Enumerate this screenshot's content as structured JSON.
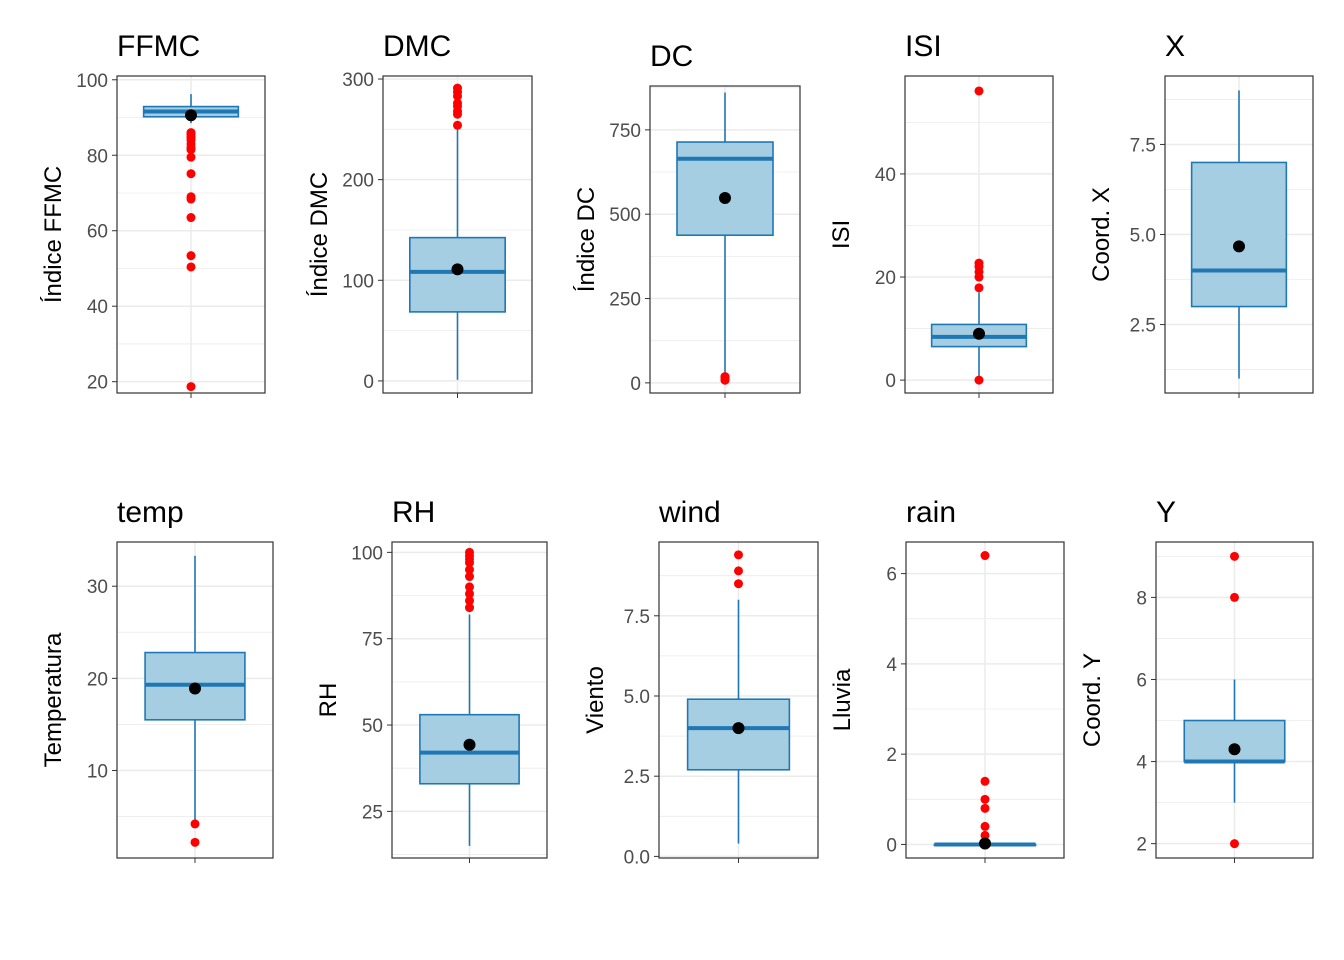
{
  "chart_data": [
    {
      "type": "boxplot",
      "title": "FFMC",
      "ylabel": "Índice FFMC",
      "ylim": [
        17,
        101
      ],
      "yticks": [
        20,
        40,
        60,
        80,
        100
      ],
      "box": {
        "q1": 90.2,
        "median": 91.6,
        "q3": 92.9,
        "whisker_low": 88.5,
        "whisker_high": 96.2,
        "mean": 90.6
      },
      "outliers": [
        18.7,
        50.4,
        53.4,
        63.5,
        68.4,
        69,
        75.1,
        79.5,
        81.5,
        82.1,
        83,
        84,
        84.6,
        85,
        85.6,
        86
      ]
    },
    {
      "type": "boxplot",
      "title": "DMC",
      "ylabel": "Índice DMC",
      "ylim": [
        -12,
        303
      ],
      "yticks": [
        0,
        100,
        200,
        300
      ],
      "box": {
        "q1": 68.6,
        "median": 108.3,
        "q3": 142.4,
        "whisker_low": 1.1,
        "whisker_high": 251,
        "mean": 110.9
      },
      "outliers": [
        254,
        265,
        268,
        273,
        276,
        283,
        287,
        291
      ]
    },
    {
      "type": "boxplot",
      "title": "DC",
      "ylabel": "Índice DC",
      "ylim": [
        -30,
        880
      ],
      "yticks": [
        0,
        250,
        500,
        750
      ],
      "box": {
        "q1": 437.7,
        "median": 664.2,
        "q3": 713.9,
        "whisker_low": 15,
        "whisker_high": 860.6,
        "mean": 547.9
      },
      "outliers": [
        7.9,
        9.3,
        15.3,
        18.7
      ]
    },
    {
      "type": "boxplot",
      "title": "ISI",
      "ylabel": "ISI",
      "ylim": [
        -2.5,
        59
      ],
      "yticks": [
        0,
        20,
        40
      ],
      "box": {
        "q1": 6.5,
        "median": 8.4,
        "q3": 10.8,
        "whisker_low": 0.4,
        "whisker_high": 17,
        "mean": 9
      },
      "outliers": [
        0,
        17.9,
        20,
        21,
        22,
        22.7,
        56.1
      ]
    },
    {
      "type": "boxplot",
      "title": "X",
      "ylabel": "Coord. X",
      "ylim": [
        0.6,
        9.4
      ],
      "yticks": [
        2.5,
        5.0,
        7.5
      ],
      "box": {
        "q1": 3,
        "median": 4,
        "q3": 7,
        "whisker_low": 1,
        "whisker_high": 9,
        "mean": 4.67
      },
      "outliers": []
    },
    {
      "type": "boxplot",
      "title": "temp",
      "ylabel": "Temperatura",
      "ylim": [
        0.5,
        34.8
      ],
      "yticks": [
        10,
        20,
        30
      ],
      "box": {
        "q1": 15.5,
        "median": 19.3,
        "q3": 22.8,
        "whisker_low": 4.6,
        "whisker_high": 33.3,
        "mean": 18.9
      },
      "outliers": [
        2.2,
        4.2
      ]
    },
    {
      "type": "boxplot",
      "title": "RH",
      "ylabel": "RH",
      "ylim": [
        11.5,
        103
      ],
      "yticks": [
        25,
        50,
        75,
        100
      ],
      "box": {
        "q1": 33,
        "median": 42,
        "q3": 53,
        "whisker_low": 15,
        "whisker_high": 82,
        "mean": 44.3
      },
      "outliers": [
        84,
        86,
        88,
        90,
        93,
        95,
        97,
        98,
        99,
        100
      ]
    },
    {
      "type": "boxplot",
      "title": "wind",
      "ylabel": "Viento",
      "ylim": [
        -0.05,
        9.8
      ],
      "yticks": [
        0.0,
        2.5,
        5.0,
        7.5
      ],
      "box": {
        "q1": 2.7,
        "median": 4,
        "q3": 4.9,
        "whisker_low": 0.4,
        "whisker_high": 8,
        "mean": 4
      },
      "outliers": [
        8.5,
        8.9,
        9.4
      ]
    },
    {
      "type": "boxplot",
      "title": "rain",
      "ylabel": "Lluvia",
      "ylim": [
        -0.3,
        6.7
      ],
      "yticks": [
        0,
        2,
        4,
        6
      ],
      "box": {
        "q1": 0,
        "median": 0,
        "q3": 0,
        "whisker_low": 0,
        "whisker_high": 0,
        "mean": 0.02
      },
      "outliers": [
        0.2,
        0.4,
        0.8,
        1.0,
        1.4,
        6.4
      ]
    },
    {
      "type": "boxplot",
      "title": "Y",
      "ylabel": "Coord. Y",
      "ylim": [
        1.65,
        9.35
      ],
      "yticks": [
        2,
        4,
        6,
        8
      ],
      "box": {
        "q1": 4,
        "median": 4,
        "q3": 5,
        "whisker_low": 3,
        "whisker_high": 6,
        "mean": 4.3
      },
      "outliers": [
        2,
        8,
        9
      ]
    }
  ],
  "colors": {
    "box_fill": "#a6cee3",
    "box_line": "#1f78b4",
    "outlier": "#ff0000",
    "mean": "#000000",
    "grid": "#ebebeb",
    "border": "#333333"
  }
}
